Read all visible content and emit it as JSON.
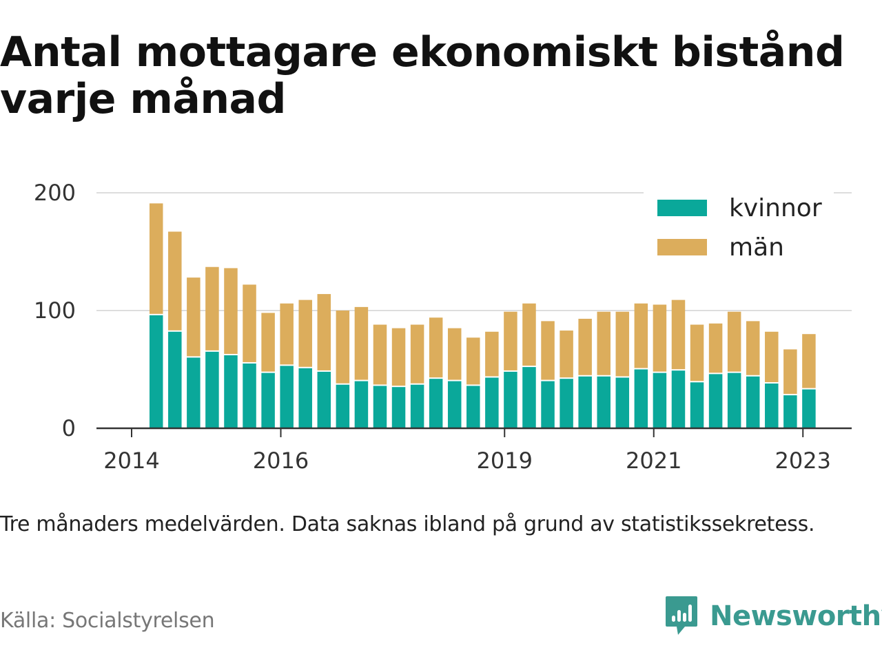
{
  "title": "Antal mottagare ekonomiskt bistånd varje månad",
  "note": "Tre månaders medelvärden. Data saknas ibland på grund av statistikssekretess.",
  "source": "Källa: Socialstyrelsen",
  "brand": {
    "name": "Newsworthy",
    "icon": "newsworthy-logo-icon",
    "color": "#3a9a90"
  },
  "chart_data": {
    "type": "bar",
    "stacked": true,
    "grid": true,
    "legend_position": "top-right",
    "ylim": [
      0,
      200
    ],
    "y_ticks": [
      0,
      100,
      200
    ],
    "x_ticks": [
      {
        "value": 2014.0,
        "label": "2014"
      },
      {
        "value": 2016.0,
        "label": "2016"
      },
      {
        "value": 2019.0,
        "label": "2019"
      },
      {
        "value": 2021.0,
        "label": "2021"
      },
      {
        "value": 2023.0,
        "label": "2023"
      }
    ],
    "x": [
      2014.33,
      2014.58,
      2014.83,
      2015.08,
      2015.33,
      2015.58,
      2015.83,
      2016.08,
      2016.33,
      2016.58,
      2016.83,
      2017.08,
      2017.33,
      2017.58,
      2017.83,
      2018.08,
      2018.33,
      2018.58,
      2018.83,
      2019.08,
      2019.33,
      2019.58,
      2019.83,
      2020.08,
      2020.33,
      2020.58,
      2020.83,
      2021.08,
      2021.33,
      2021.58,
      2021.83,
      2022.08,
      2022.33,
      2022.58,
      2022.83,
      2023.08
    ],
    "series": [
      {
        "name": "kvinnor",
        "color": "#0aa89a",
        "values": [
          96,
          82,
          60,
          65,
          62,
          55,
          47,
          53,
          51,
          48,
          37,
          40,
          36,
          35,
          37,
          42,
          40,
          36,
          43,
          48,
          52,
          40,
          42,
          44,
          44,
          43,
          50,
          47,
          49,
          39,
          46,
          47,
          44,
          38,
          28,
          33
        ]
      },
      {
        "name": "män",
        "color": "#dcad5c",
        "values": [
          95,
          85,
          68,
          72,
          74,
          67,
          51,
          53,
          58,
          66,
          63,
          63,
          52,
          50,
          51,
          52,
          45,
          41,
          39,
          51,
          54,
          51,
          41,
          49,
          55,
          56,
          56,
          58,
          60,
          49,
          43,
          52,
          47,
          44,
          39,
          47
        ]
      }
    ]
  }
}
